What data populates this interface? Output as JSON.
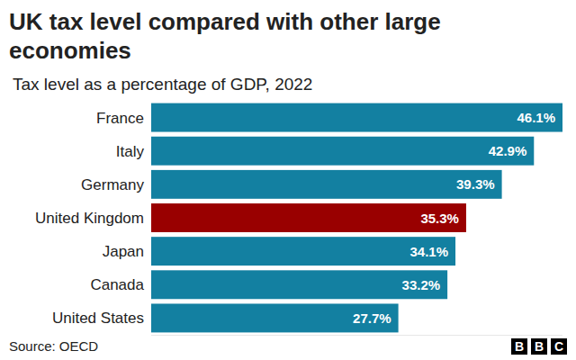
{
  "chart_data": {
    "type": "bar",
    "orientation": "horizontal",
    "title": "UK tax level compared with other large economies",
    "subtitle": "Tax level as a percentage of GDP, 2022",
    "source": "Source: OECD",
    "credit": "BBC",
    "categories": [
      "France",
      "Italy",
      "Germany",
      "United Kingdom",
      "Japan",
      "Canada",
      "United States"
    ],
    "values": [
      46.1,
      42.9,
      39.3,
      35.3,
      34.1,
      33.2,
      27.7
    ],
    "value_labels": [
      "46.1%",
      "42.9%",
      "39.3%",
      "35.3%",
      "34.1%",
      "33.2%",
      "27.7%"
    ],
    "colors": [
      "#1380a1",
      "#1380a1",
      "#1380a1",
      "#990000",
      "#1380a1",
      "#1380a1",
      "#1380a1"
    ],
    "xlim": [
      0,
      46.1
    ],
    "data_labels": true,
    "tick_labels": "y",
    "grid": false
  }
}
